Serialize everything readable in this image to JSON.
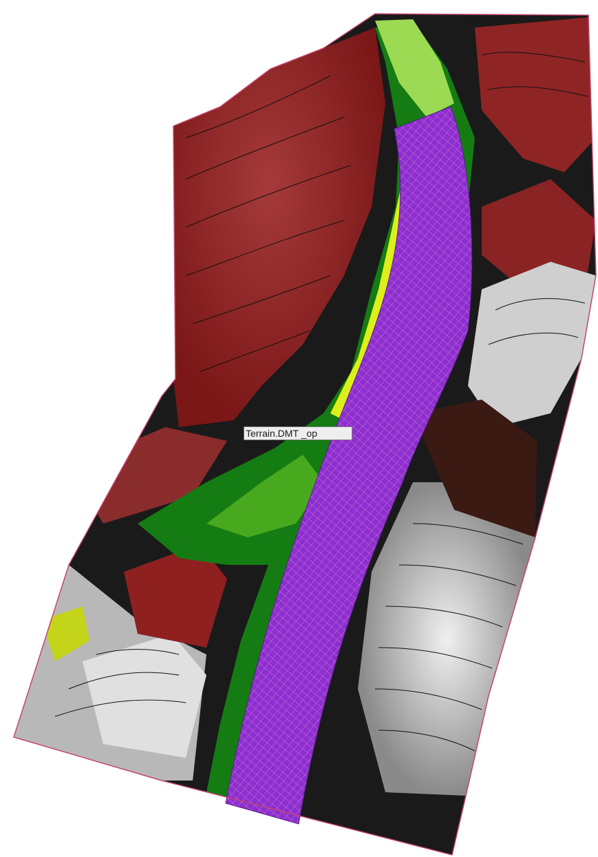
{
  "map": {
    "colors": {
      "background": "#ffffff",
      "boundary": "#c2466f",
      "contour": "#111111",
      "high_red": "#8e1d1d",
      "mid_red": "#a63030",
      "dark_green": "#137a12",
      "mid_green": "#40a71c",
      "light_green": "#9fdc55",
      "yellow": "#e7f21d",
      "gray_light": "#d4d4d4",
      "gray_mid": "#9a9a9a",
      "black": "#0a0a0a",
      "road_hatch_fill": "#8a2fd1",
      "road_hatch_line": "#d064c6"
    },
    "layers": [
      {
        "name": "terrain-surface",
        "icon": "terrain-raster-icon"
      },
      {
        "name": "contour-lines",
        "icon": "contour-icon"
      },
      {
        "name": "corridor-hatch",
        "icon": "hatch-icon"
      }
    ]
  },
  "tooltip": {
    "text": "Terrain.DMT _op"
  }
}
